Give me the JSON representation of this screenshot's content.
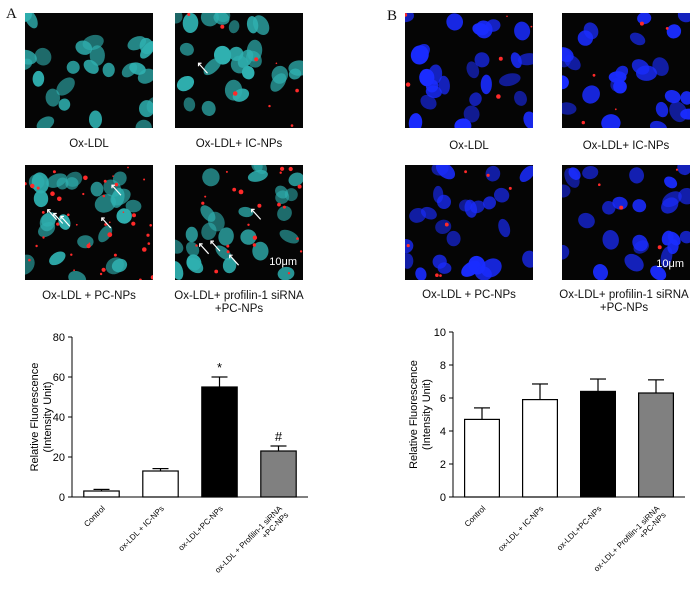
{
  "panel_a": {
    "letter": "A",
    "images": [
      {
        "caption": "Ox-LDL"
      },
      {
        "caption": "Ox-LDL+ IC-NPs"
      },
      {
        "caption": "Ox-LDL + PC-NPs"
      },
      {
        "caption": "Ox-LDL+ profilin-1 siRNA\n+PC-NPs"
      }
    ],
    "scale_bar": "10μm"
  },
  "panel_b": {
    "letter": "B",
    "images": [
      {
        "caption": "Ox-LDL"
      },
      {
        "caption": "Ox-LDL+ IC-NPs"
      },
      {
        "caption": "Ox-LDL + PC-NPs"
      },
      {
        "caption": "Ox-LDL+ profilin-1 siRNA\n+PC-NPs"
      }
    ],
    "scale_bar": "10μm"
  },
  "colors": {
    "nucleus_a": "#2fb0b0",
    "nucleus_b": "#1a2cff",
    "particle": "#ff2a2a",
    "bar_control": "#ffffff",
    "bar_ic": "#ffffff",
    "bar_pc": "#000000",
    "bar_sirna": "#808080"
  },
  "chart_data": [
    {
      "type": "bar",
      "ylabel": "Relative Fluorescence\n(Intensity Unit)",
      "ylim": [
        0,
        80
      ],
      "yticks": [
        0,
        20,
        40,
        60,
        80
      ],
      "categories": [
        "Control",
        "ox-LDL + IC-NPs",
        "ox-LDL+PC-NPs",
        "ox-LDL + Profilin-1 siRNA\n+PC-NPs"
      ],
      "values": [
        3,
        13,
        55,
        23
      ],
      "errors": [
        0.8,
        1.2,
        5,
        2.5
      ],
      "annotations": [
        "",
        "",
        "*",
        "#"
      ]
    },
    {
      "type": "bar",
      "ylabel": "Relative Fluorescence\n(Intensity Unit)",
      "ylim": [
        0,
        10
      ],
      "yticks": [
        0,
        2,
        4,
        6,
        8,
        10
      ],
      "categories": [
        "Control",
        "ox-LDL + IC-NPs",
        "ox-LDL+PC-NPs",
        "ox-LDL+ Profilin-1 siRNA\n+PC-NPs"
      ],
      "values": [
        4.7,
        5.9,
        6.4,
        6.3
      ],
      "errors": [
        0.7,
        0.95,
        0.75,
        0.8
      ],
      "annotations": [
        "",
        "",
        "",
        ""
      ]
    }
  ]
}
